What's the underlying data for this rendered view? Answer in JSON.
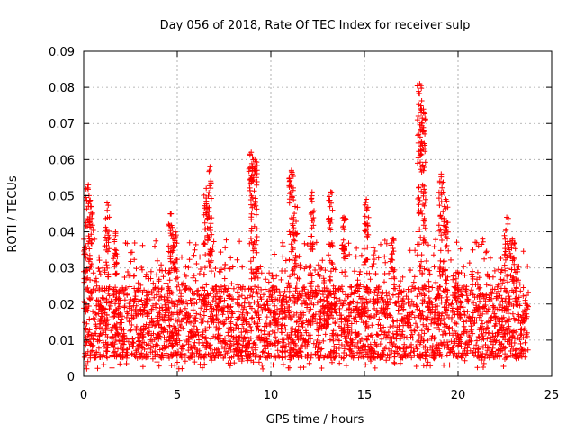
{
  "chart_data": {
    "type": "scatter",
    "title": "Day 056 of 2018, Rate Of TEC Index for receiver sulp",
    "xlabel": "GPS time / hours",
    "ylabel": "ROTI / TECUs",
    "xlim": [
      0,
      25
    ],
    "ylim": [
      0,
      0.09
    ],
    "x_ticks": [
      "0",
      "5",
      "10",
      "15",
      "20",
      "25"
    ],
    "y_ticks": [
      "0",
      "0.01",
      "0.02",
      "0.03",
      "0.04",
      "0.05",
      "0.06",
      "0.07",
      "0.08",
      "0.09"
    ],
    "x_tick_values": [
      0,
      5,
      10,
      15,
      20,
      25
    ],
    "y_tick_values": [
      0,
      0.01,
      0.02,
      0.03,
      0.04,
      0.05,
      0.06,
      0.07,
      0.08,
      0.09
    ],
    "grid": true,
    "marker": "plus",
    "marker_color": "#ff0000",
    "time_range_hours": [
      0,
      23.75
    ],
    "typical_range": [
      0.005,
      0.025
    ],
    "spikes": [
      {
        "x": 0.05,
        "y_max": 0.035
      },
      {
        "x": 0.25,
        "y_max": 0.053
      },
      {
        "x": 0.4,
        "y_max": 0.047
      },
      {
        "x": 1.25,
        "y_max": 0.048
      },
      {
        "x": 1.7,
        "y_max": 0.04
      },
      {
        "x": 4.65,
        "y_max": 0.045
      },
      {
        "x": 4.9,
        "y_max": 0.04
      },
      {
        "x": 6.55,
        "y_max": 0.052
      },
      {
        "x": 6.75,
        "y_max": 0.058
      },
      {
        "x": 8.95,
        "y_max": 0.062
      },
      {
        "x": 9.15,
        "y_max": 0.06
      },
      {
        "x": 11.1,
        "y_max": 0.057
      },
      {
        "x": 11.3,
        "y_max": 0.047
      },
      {
        "x": 12.2,
        "y_max": 0.051
      },
      {
        "x": 13.2,
        "y_max": 0.051
      },
      {
        "x": 13.9,
        "y_max": 0.044
      },
      {
        "x": 15.1,
        "y_max": 0.049
      },
      {
        "x": 16.5,
        "y_max": 0.038
      },
      {
        "x": 17.95,
        "y_max": 0.081
      },
      {
        "x": 18.15,
        "y_max": 0.074
      },
      {
        "x": 19.1,
        "y_max": 0.056
      },
      {
        "x": 19.35,
        "y_max": 0.049
      },
      {
        "x": 22.6,
        "y_max": 0.044
      },
      {
        "x": 22.9,
        "y_max": 0.038
      }
    ]
  }
}
